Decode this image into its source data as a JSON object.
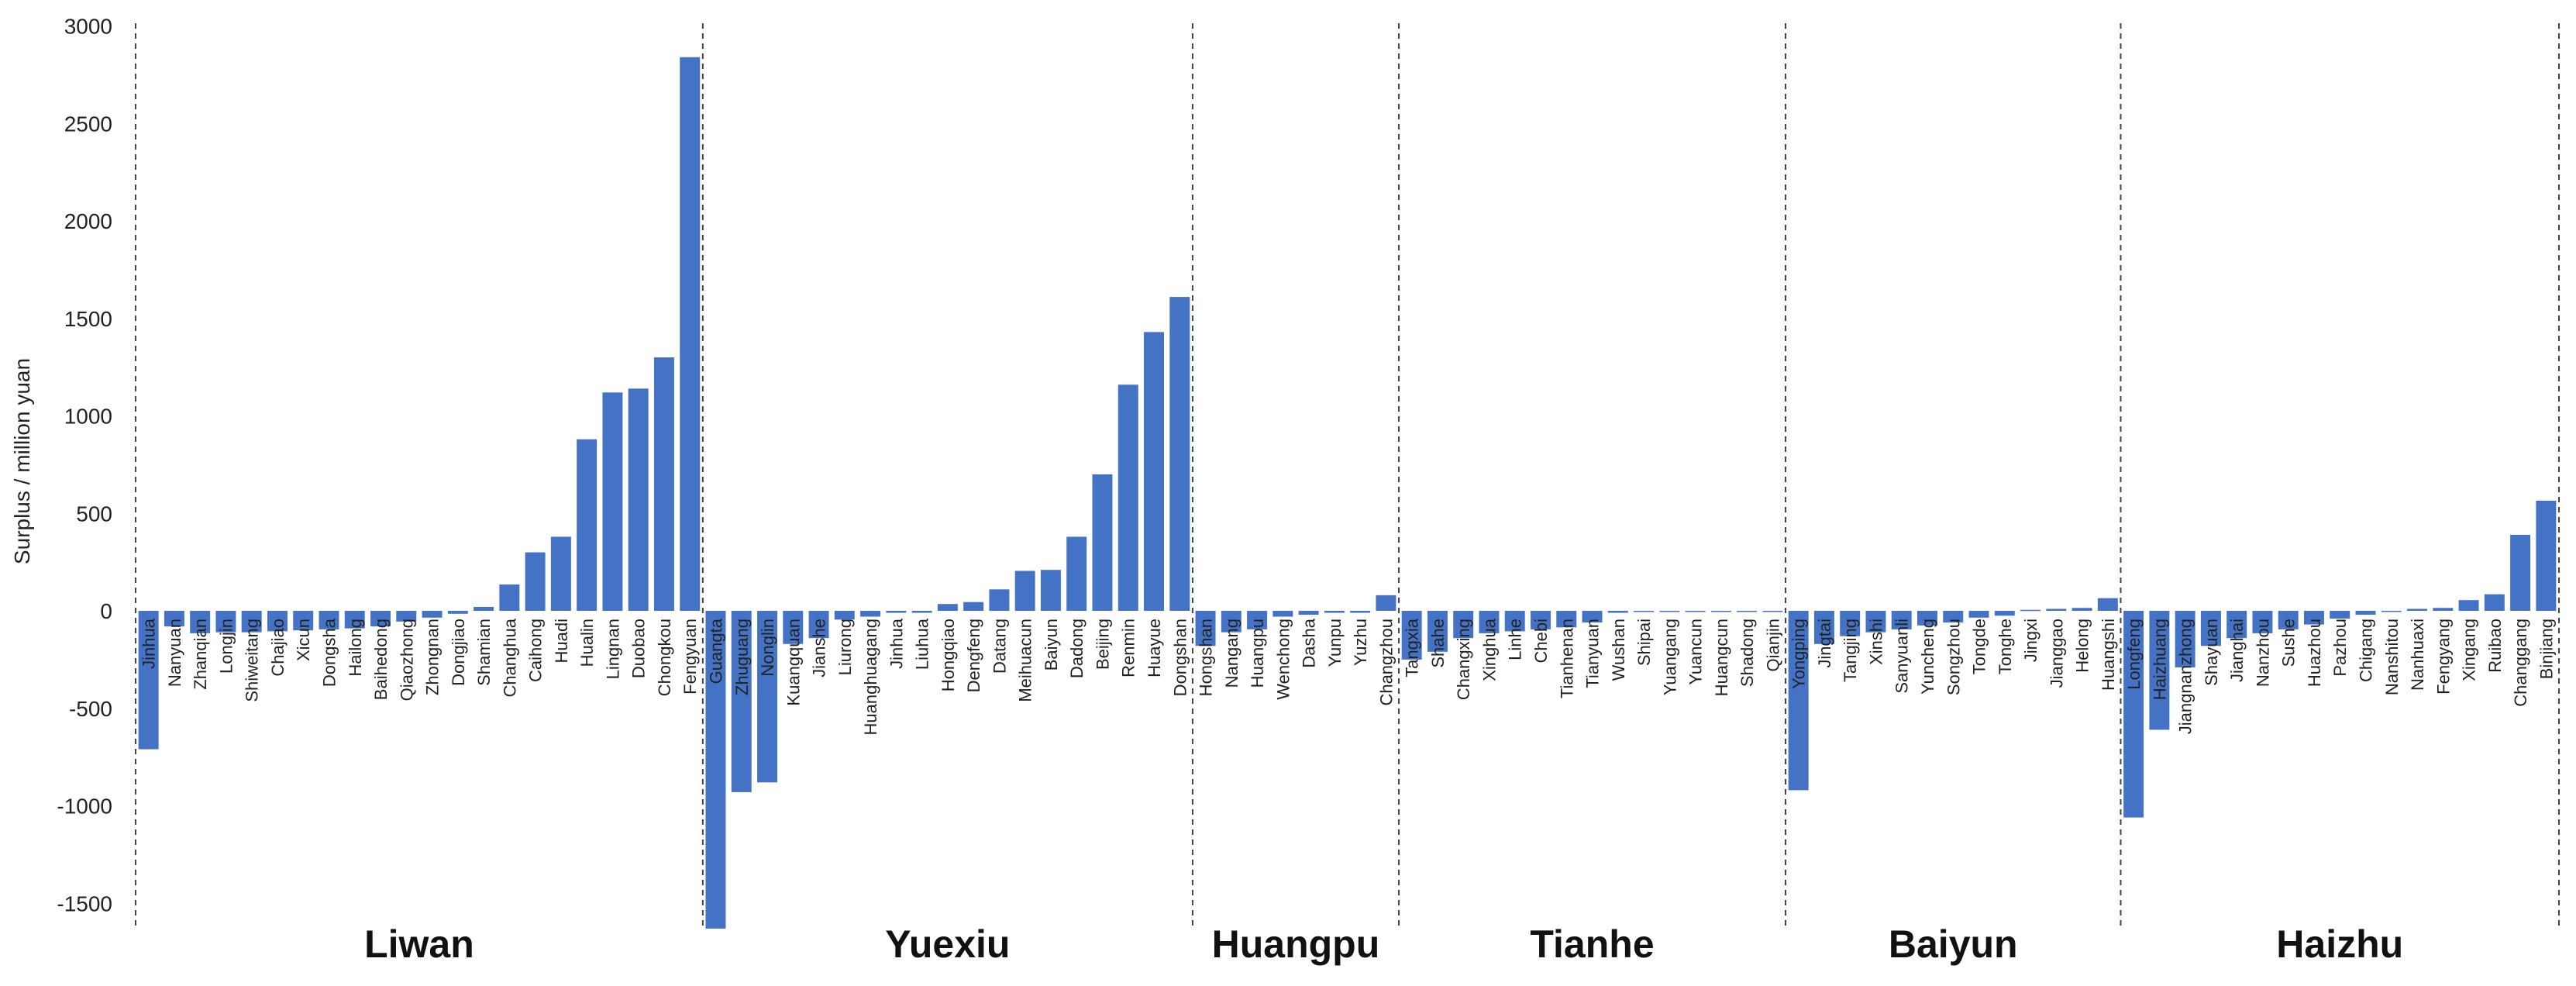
{
  "chart_data": {
    "type": "bar",
    "ylabel": "Surplus / million yuan",
    "ylim": [
      -1600,
      3000
    ],
    "yticks": [
      "3000",
      "2500",
      "2000",
      "1500",
      "1000",
      "500",
      "0",
      "-500",
      "-1000",
      "-1500"
    ],
    "grid": false,
    "colors": {
      "bar": "#4472c4"
    },
    "groups": [
      {
        "name": "Liwan",
        "categories": [
          "Jinhua",
          "Nanyuan",
          "Zhanqian",
          "Longjin",
          "Shiweitang",
          "Chajiao",
          "Xicun",
          "Dongsha",
          "Hailong",
          "Baihedong",
          "Qiaozhong",
          "Zhongnan",
          "Dongjiao",
          "Shamian",
          "Changhua",
          "Caihong",
          "Huadi",
          "Hualin",
          "Lingnan",
          "Duobao",
          "Chongkou",
          "Fengyuan"
        ],
        "values": [
          -710,
          -80,
          -115,
          -110,
          -110,
          -105,
          -100,
          -95,
          -90,
          -80,
          -55,
          -35,
          -15,
          20,
          135,
          300,
          380,
          880,
          1120,
          1140,
          1300,
          2840
        ]
      },
      {
        "name": "Yuexiu",
        "categories": [
          "Guangta",
          "Zhuguang",
          "Nonglin",
          "Kuangquan",
          "Jianshe",
          "Liurong",
          "Huanghuagang",
          "Jinhua",
          "Liuhua",
          "Hongqiao",
          "Dengfeng",
          "Datang",
          "Meihuacun",
          "Baiyun",
          "Dadong",
          "Beijing",
          "Renmin",
          "Huayue",
          "Dongshan"
        ],
        "values": [
          -1630,
          -930,
          -880,
          -170,
          -140,
          -45,
          -30,
          -10,
          -10,
          35,
          45,
          110,
          205,
          210,
          380,
          700,
          1160,
          1430,
          1610
        ]
      },
      {
        "name": "Huangpu",
        "categories": [
          "Hongshan",
          "Nangang",
          "Huangpu",
          "Wenchong",
          "Dasha",
          "Yunpu",
          "Yuzhu",
          "Changzhou"
        ],
        "values": [
          -180,
          -110,
          -95,
          -30,
          -20,
          -10,
          -10,
          80
        ]
      },
      {
        "name": "Tianhe",
        "categories": [
          "Tangxia",
          "Shahe",
          "Changxing",
          "Xinghua",
          "Linhe",
          "Chebi",
          "Tianhenan",
          "Tianyuan",
          "Wushan",
          "Shipai",
          "Yuangang",
          "Yuancun",
          "Huangcun",
          "Shadong",
          "Qianjin"
        ],
        "values": [
          -250,
          -210,
          -140,
          -115,
          -105,
          -95,
          -85,
          -60,
          -10,
          -5,
          -3,
          -2,
          -2,
          -1,
          -1
        ]
      },
      {
        "name": "Baiyun",
        "categories": [
          "Yongping",
          "Jingtai",
          "Tangjing",
          "Xinshi",
          "Sanyuanli",
          "Yuncheng",
          "Songzhou",
          "Tongde",
          "Tonghe",
          "Jingxi",
          "Jianggao",
          "Helong",
          "Huangshi"
        ],
        "values": [
          -920,
          -170,
          -130,
          -110,
          -95,
          -75,
          -60,
          -35,
          -25,
          5,
          10,
          15,
          65
        ]
      },
      {
        "name": "Haizhu",
        "categories": [
          "Longfeng",
          "Haizhuang",
          "Jiangnanzhong",
          "Shayuan",
          "Jianghai",
          "Nanzhou",
          "Sushe",
          "Huazhou",
          "Pazhou",
          "Chigang",
          "Nanshitou",
          "Nanhuaxi",
          "Fengyang",
          "Xingang",
          "Ruibao",
          "Changgang",
          "Binjiang"
        ],
        "values": [
          -1060,
          -610,
          -290,
          -180,
          -140,
          -115,
          -95,
          -70,
          -40,
          -20,
          -5,
          10,
          15,
          55,
          85,
          390,
          565
        ]
      }
    ]
  }
}
